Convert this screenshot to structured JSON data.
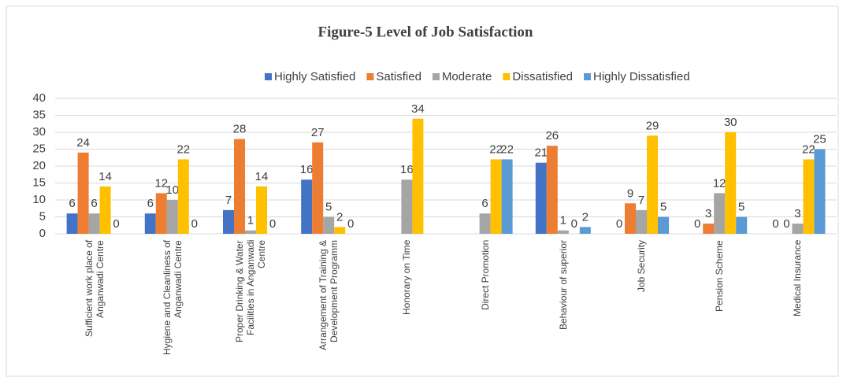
{
  "chart_data": {
    "type": "bar",
    "title": "Figure-5 Level of Job Satisfaction",
    "categories": [
      "Sufficient work place of Anganwadi Centre",
      "Hygiene and Cleanliness of Anganwadi Centre",
      "Proper Drinking & Water Facilities in Anganwadi Centre",
      "Arrangement of Training & Development Programm",
      "Honorary on Time",
      "Direct Promotion",
      "Behaviour of superior",
      "Job Security",
      "Pension Scheme",
      "Medical Insurance"
    ],
    "series": [
      {
        "name": "Highly Satisfied",
        "color": "#4472c4",
        "values": [
          6,
          6,
          7,
          16,
          null,
          null,
          21,
          0,
          0,
          0
        ]
      },
      {
        "name": "Satisfied",
        "color": "#ed7d31",
        "values": [
          24,
          12,
          28,
          27,
          null,
          null,
          26,
          9,
          3,
          0
        ]
      },
      {
        "name": "Moderate",
        "color": "#a5a5a5",
        "values": [
          6,
          10,
          1,
          5,
          16,
          6,
          1,
          7,
          12,
          3
        ]
      },
      {
        "name": "Dissatisfied",
        "color": "#ffc000",
        "values": [
          14,
          22,
          14,
          2,
          34,
          22,
          0,
          29,
          30,
          22
        ]
      },
      {
        "name": "Highly Dissatisfied",
        "color": "#5b9bd5",
        "values": [
          0,
          0,
          0,
          0,
          null,
          22,
          2,
          5,
          5,
          25
        ]
      }
    ],
    "ylim": [
      0,
      40
    ],
    "yticks": [
      0,
      5,
      10,
      15,
      20,
      25,
      30,
      35,
      40
    ],
    "grid": true,
    "legend": "top"
  }
}
